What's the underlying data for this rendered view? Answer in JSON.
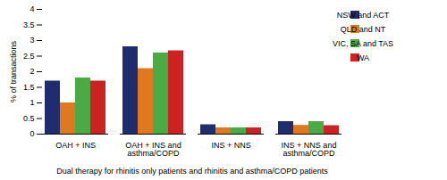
{
  "chart_data": {
    "type": "bar",
    "categories": [
      "OAH + INS",
      "OAH + INS and\nasthma/COPD",
      "INS + NNS",
      "INS + NNS and\nasthma/COPD"
    ],
    "series": [
      {
        "name": "NSW and ACT",
        "color": "#1f2d6e",
        "values": [
          1.7,
          2.8,
          0.3,
          0.4
        ]
      },
      {
        "name": "QLD and NT",
        "color": "#e07820",
        "values": [
          1.0,
          2.1,
          0.2,
          0.28
        ]
      },
      {
        "name": "VIC, SA and TAS",
        "color": "#4aaa44",
        "values": [
          1.8,
          2.6,
          0.2,
          0.4
        ]
      },
      {
        "name": "WA",
        "color": "#cc2222",
        "values": [
          1.7,
          2.67,
          0.2,
          0.27
        ]
      }
    ],
    "ylabel": "% of transactions",
    "xlabel": "Dual therapy for rhinitis only patients and rhinitis and asthma/COPD patients",
    "ylim": [
      0,
      4
    ],
    "yticks": [
      0,
      0.5,
      1,
      1.5,
      2,
      2.5,
      3,
      3.5,
      4
    ],
    "legend": "right",
    "grid": false
  }
}
